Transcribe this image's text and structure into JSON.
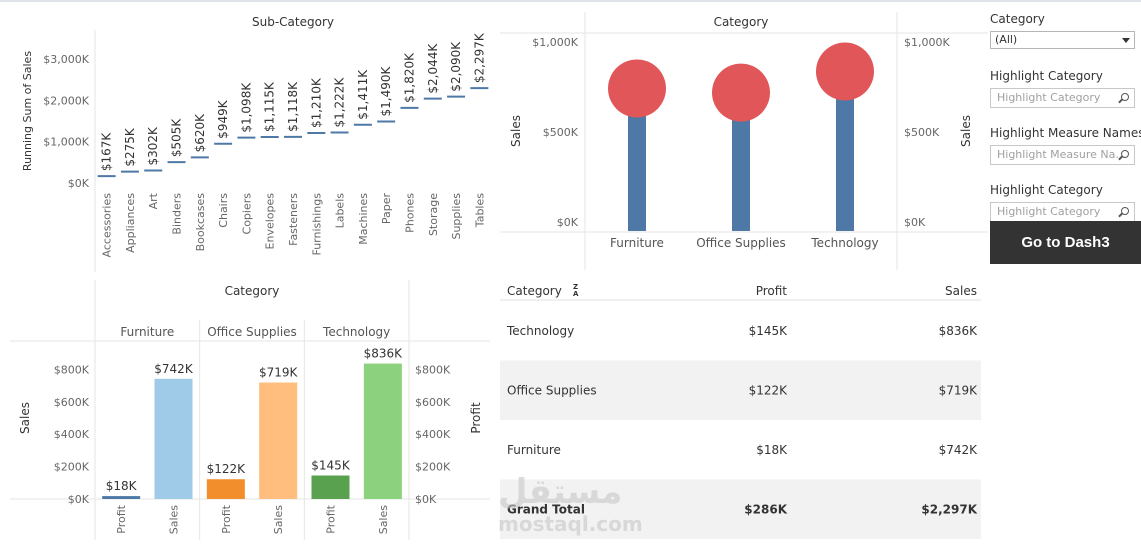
{
  "chart_data": [
    {
      "type": "bar",
      "title": "Sub-Category",
      "ylabel": "Running Sum of Sales",
      "ylim": [
        0,
        3300
      ],
      "y_ticks": [
        "$0K",
        "$1,000K",
        "$2,000K",
        "$3,000K"
      ],
      "categories": [
        "Accessories",
        "Appliances",
        "Art",
        "Binders",
        "Bookcases",
        "Chairs",
        "Copiers",
        "Envelopes",
        "Fasteners",
        "Furnishings",
        "Labels",
        "Machines",
        "Paper",
        "Phones",
        "Storage",
        "Supplies",
        "Tables"
      ],
      "values": [
        167,
        275,
        302,
        505,
        620,
        949,
        1098,
        1115,
        1118,
        1210,
        1222,
        1411,
        1490,
        1820,
        2044,
        2090,
        2297
      ],
      "labels": [
        "$167K",
        "$275K",
        "$302K",
        "$505K",
        "$620K",
        "$949K",
        "$1,098K",
        "$1,115K",
        "$1,118K",
        "$1,210K",
        "$1,222K",
        "$1,411K",
        "$1,490K",
        "$1,820K",
        "$2,044K",
        "$2,090K",
        "$2,297K"
      ],
      "color": "#4e79a7"
    },
    {
      "type": "bar",
      "title": "Category",
      "ylabel": "Sales",
      "ylim": [
        0,
        1000
      ],
      "y_ticks": [
        "$0K",
        "$500K",
        "$1,000K"
      ],
      "categories": [
        "Furniture",
        "Office Supplies",
        "Technology"
      ],
      "values": [
        742,
        719,
        836
      ],
      "bar_color": "#4e79a7",
      "circle_color": "#e15759"
    },
    {
      "type": "bar",
      "title": "Category",
      "ylabel": "Sales",
      "ylabel_right": "Profit",
      "ylim": [
        0,
        850
      ],
      "y_ticks": [
        "$0K",
        "$200K",
        "$400K",
        "$600K",
        "$800K"
      ],
      "groups": [
        {
          "name": "Furniture",
          "bars": [
            {
              "measure": "Profit",
              "value": 18,
              "label": "$18K",
              "color": "#4e79a7"
            },
            {
              "measure": "Sales",
              "value": 742,
              "label": "$742K",
              "color": "#a0cbe8"
            }
          ]
        },
        {
          "name": "Office Supplies",
          "bars": [
            {
              "measure": "Profit",
              "value": 122,
              "label": "$122K",
              "color": "#f28e2b"
            },
            {
              "measure": "Sales",
              "value": 719,
              "label": "$719K",
              "color": "#ffbe7d"
            }
          ]
        },
        {
          "name": "Technology",
          "bars": [
            {
              "measure": "Profit",
              "value": 145,
              "label": "$145K",
              "color": "#59a14f"
            },
            {
              "measure": "Sales",
              "value": 836,
              "label": "$836K",
              "color": "#8cd17d"
            }
          ]
        }
      ]
    },
    {
      "type": "table",
      "columns": [
        "Category",
        "Profit",
        "Sales"
      ],
      "sort_icon": "sort-az-icon",
      "rows": [
        [
          "Technology",
          "$145K",
          "$836K"
        ],
        [
          "Office Supplies",
          "$122K",
          "$719K"
        ],
        [
          "Furniture",
          "$18K",
          "$742K"
        ]
      ],
      "total": [
        "Grand Total",
        "$286K",
        "$2,297K"
      ]
    }
  ],
  "filters": [
    {
      "label": "Category",
      "type": "select",
      "value": "(All)"
    },
    {
      "label": "Highlight Category",
      "type": "search",
      "placeholder": "Highlight Category"
    },
    {
      "label": "Highlight Measure Names",
      "type": "search",
      "placeholder": "Highlight Measure Na..."
    },
    {
      "label": "Highlight Category",
      "type": "search",
      "placeholder": "Highlight Category"
    }
  ],
  "button_label": "Go to Dash3",
  "watermark": {
    "arabic": "مستقل",
    "latin": "mostaql.com"
  }
}
